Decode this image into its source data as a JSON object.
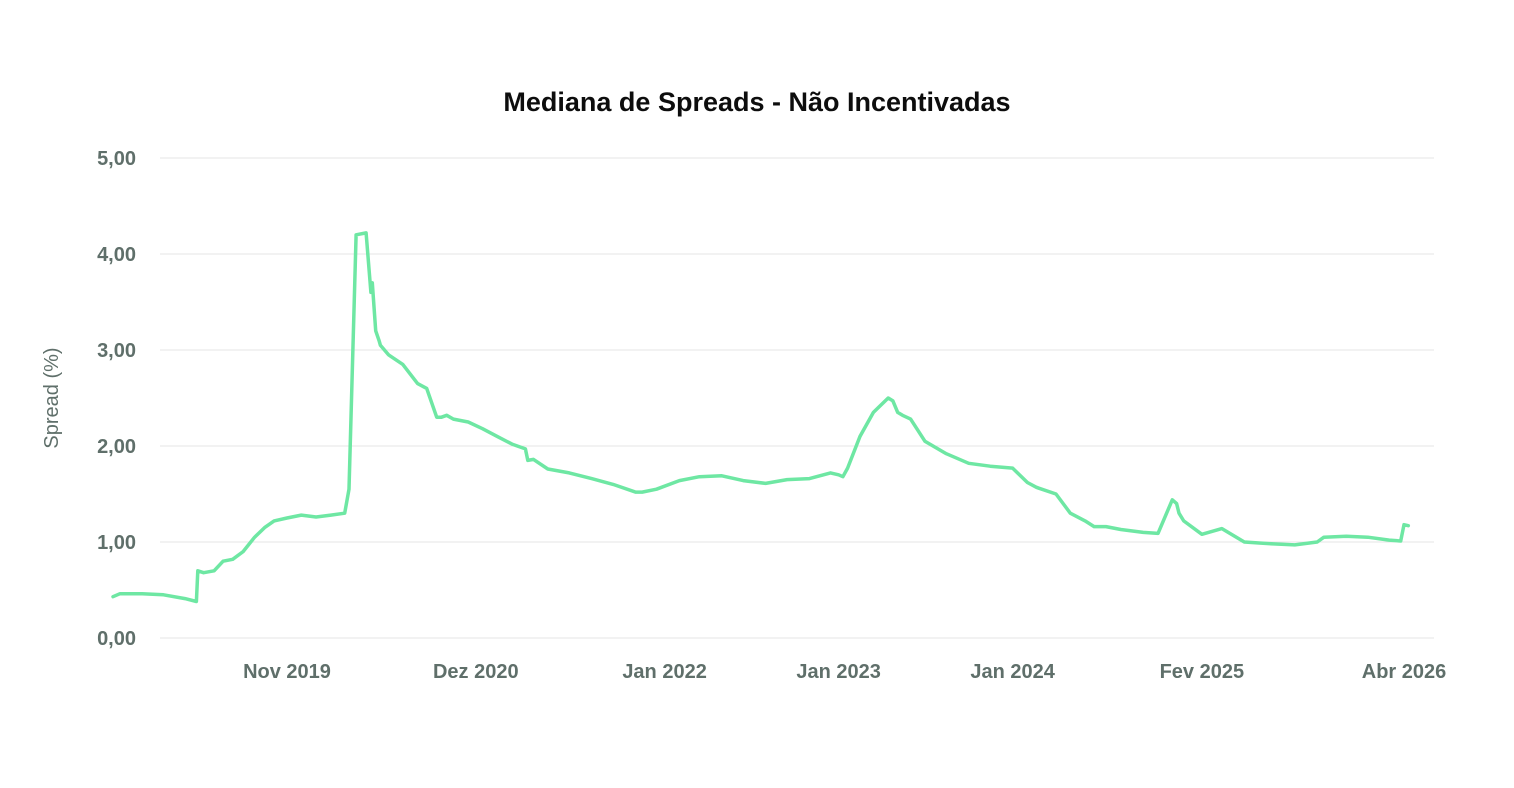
{
  "chart_data": {
    "type": "line",
    "title": "Mediana de Spreads - Não Incentivadas",
    "xlabel": "",
    "ylabel": "Spread (%)",
    "ylim": [
      0,
      5
    ],
    "y_ticks": [
      "0,00",
      "1,00",
      "2,00",
      "3,00",
      "4,00",
      "5,00"
    ],
    "x_range": [
      "2018-11-01",
      "2026-04-15"
    ],
    "x_ticks": [
      {
        "date": "2019-11-01",
        "label": "Nov 2019"
      },
      {
        "date": "2020-12-01",
        "label": "Dez 2020"
      },
      {
        "date": "2022-01-01",
        "label": "Jan 2022"
      },
      {
        "date": "2023-01-01",
        "label": "Jan 2023"
      },
      {
        "date": "2024-01-01",
        "label": "Jan 2024"
      },
      {
        "date": "2025-02-01",
        "label": "Fev 2025"
      },
      {
        "date": "2026-04-01",
        "label": "Abr 2026"
      }
    ],
    "grid": true,
    "legend": "none",
    "line_color": "#6ee7a3",
    "series": [
      {
        "x": [
          "2018-11-01",
          "2018-11-15",
          "2019-01-01",
          "2019-02-15",
          "2019-04-01",
          "2019-04-25",
          "2019-04-28",
          "2019-05-10",
          "2019-06-01",
          "2019-06-20",
          "2019-07-10",
          "2019-08-01",
          "2019-08-25",
          "2019-09-15",
          "2019-10-05",
          "2019-11-01",
          "2019-12-01",
          "2020-01-01",
          "2020-02-01",
          "2020-03-01",
          "2020-03-10",
          "2020-03-25",
          "2020-04-15",
          "2020-04-25",
          "2020-04-28",
          "2020-05-05",
          "2020-05-12",
          "2020-05-15",
          "2020-06-01",
          "2020-07-01",
          "2020-08-01",
          "2020-08-20",
          "2020-09-10",
          "2020-09-20",
          "2020-10-01",
          "2020-10-15",
          "2020-11-15",
          "2020-12-15",
          "2021-01-15",
          "2021-02-15",
          "2021-03-15",
          "2021-03-20",
          "2021-04-01",
          "2021-05-01",
          "2021-06-15",
          "2021-08-01",
          "2021-09-15",
          "2021-11-01",
          "2021-11-15",
          "2021-12-15",
          "2022-02-01",
          "2022-03-15",
          "2022-05-01",
          "2022-06-15",
          "2022-08-01",
          "2022-09-15",
          "2022-11-01",
          "2022-12-15",
          "2023-01-01",
          "2023-01-10",
          "2023-01-20",
          "2023-02-15",
          "2023-03-15",
          "2023-04-15",
          "2023-04-25",
          "2023-05-05",
          "2023-05-15",
          "2023-06-01",
          "2023-07-01",
          "2023-08-15",
          "2023-10-01",
          "2023-11-15",
          "2024-01-01",
          "2024-02-01",
          "2024-02-20",
          "2024-02-25",
          "2024-04-01",
          "2024-05-01",
          "2024-06-01",
          "2024-06-20",
          "2024-07-15",
          "2024-08-15",
          "2024-10-01",
          "2024-11-01",
          "2024-12-01",
          "2024-12-10",
          "2024-12-15",
          "2024-12-25",
          "2025-02-01",
          "2025-03-15",
          "2025-05-01",
          "2025-06-01",
          "2025-07-01",
          "2025-08-15",
          "2025-10-01",
          "2025-10-15",
          "2025-12-01",
          "2026-01-15",
          "2026-03-01",
          "2026-03-25",
          "2026-04-01",
          "2026-04-10"
        ],
        "values": [
          0.43,
          0.46,
          0.46,
          0.45,
          0.41,
          0.38,
          0.7,
          0.68,
          0.7,
          0.8,
          0.82,
          0.9,
          1.05,
          1.15,
          1.22,
          1.25,
          1.28,
          1.26,
          1.28,
          1.3,
          1.55,
          4.2,
          4.22,
          3.6,
          3.7,
          3.2,
          3.1,
          3.05,
          2.95,
          2.85,
          2.65,
          2.6,
          2.3,
          2.3,
          2.32,
          2.28,
          2.25,
          2.18,
          2.1,
          2.02,
          1.97,
          1.85,
          1.86,
          1.76,
          1.72,
          1.66,
          1.6,
          1.52,
          1.52,
          1.55,
          1.64,
          1.68,
          1.69,
          1.64,
          1.61,
          1.65,
          1.66,
          1.72,
          1.7,
          1.68,
          1.77,
          2.1,
          2.35,
          2.5,
          2.47,
          2.35,
          2.32,
          2.28,
          2.05,
          1.92,
          1.82,
          1.79,
          1.77,
          1.62,
          1.57,
          1.56,
          1.5,
          1.3,
          1.22,
          1.16,
          1.16,
          1.13,
          1.1,
          1.09,
          1.44,
          1.4,
          1.3,
          1.22,
          1.08,
          1.14,
          1.0,
          0.99,
          0.98,
          0.97,
          1.0,
          1.05,
          1.06,
          1.05,
          1.02,
          1.01,
          1.18,
          1.17
        ]
      }
    ]
  }
}
